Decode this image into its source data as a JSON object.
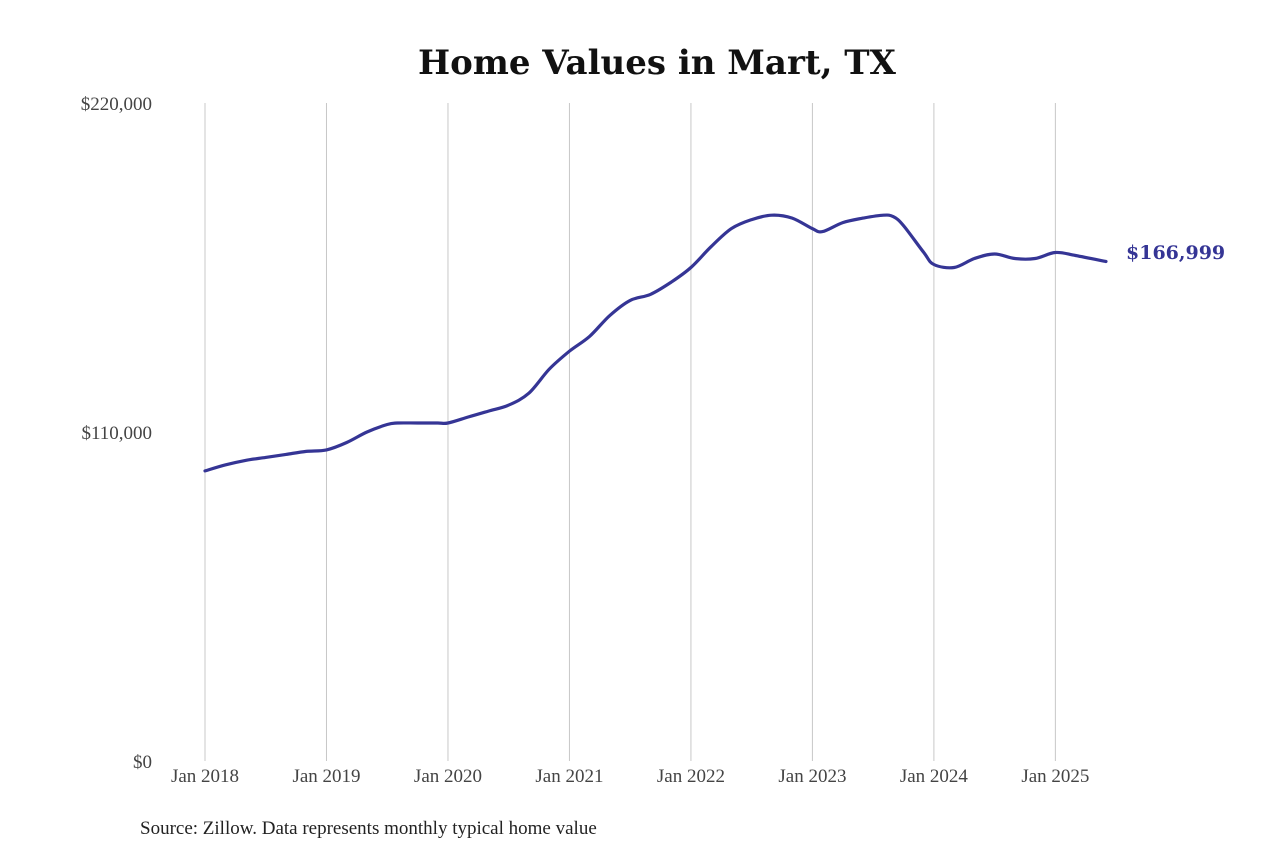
{
  "chart_data": {
    "type": "line",
    "title": "Home Values in Mart, TX",
    "source": "Source: Zillow. Data represents monthly typical home value",
    "ylim": [
      0,
      220000
    ],
    "yticks": [
      {
        "value": 0,
        "label": "$0"
      },
      {
        "value": 110000,
        "label": "$110,000"
      },
      {
        "value": 220000,
        "label": "$220,000"
      }
    ],
    "xlim": [
      "2018-01",
      "2025-06"
    ],
    "xticks": [
      {
        "value": "2018-01",
        "label": "Jan 2018"
      },
      {
        "value": "2019-01",
        "label": "Jan 2019"
      },
      {
        "value": "2020-01",
        "label": "Jan 2020"
      },
      {
        "value": "2021-01",
        "label": "Jan 2021"
      },
      {
        "value": "2022-01",
        "label": "Jan 2022"
      },
      {
        "value": "2023-01",
        "label": "Jan 2023"
      },
      {
        "value": "2024-01",
        "label": "Jan 2024"
      },
      {
        "value": "2025-01",
        "label": "Jan 2025"
      }
    ],
    "grid": "vertical",
    "legend": "none",
    "line_color": "#353595",
    "end_label": "$166,999",
    "x": [
      "2018-01",
      "2018-03",
      "2018-05",
      "2018-07",
      "2018-09",
      "2018-11",
      "2019-01",
      "2019-03",
      "2019-05",
      "2019-07",
      "2019-08",
      "2019-10",
      "2019-12",
      "2020-01",
      "2020-03",
      "2020-05",
      "2020-07",
      "2020-09",
      "2020-11",
      "2021-01",
      "2021-03",
      "2021-05",
      "2021-07",
      "2021-09",
      "2021-11",
      "2022-01",
      "2022-03",
      "2022-05",
      "2022-07",
      "2022-09",
      "2022-11",
      "2023-01",
      "2023-02",
      "2023-04",
      "2023-06",
      "2023-08",
      "2023-09",
      "2023-10",
      "2023-12",
      "2024-01",
      "2024-03",
      "2024-05",
      "2024-07",
      "2024-09",
      "2024-11",
      "2025-01",
      "2025-03",
      "2025-06"
    ],
    "series": [
      {
        "values": [
          97000,
          99000,
          100500,
          101500,
          102500,
          103500,
          104000,
          106500,
          110000,
          112500,
          113000,
          113000,
          113000,
          113000,
          115000,
          117000,
          119000,
          123000,
          131000,
          137000,
          142000,
          149000,
          154000,
          156000,
          160000,
          165000,
          172000,
          178000,
          181000,
          182500,
          181500,
          178000,
          177000,
          180000,
          181500,
          182500,
          182000,
          179000,
          170000,
          166000,
          165000,
          168000,
          169500,
          168000,
          168000,
          170000,
          169000,
          166999
        ]
      }
    ]
  }
}
